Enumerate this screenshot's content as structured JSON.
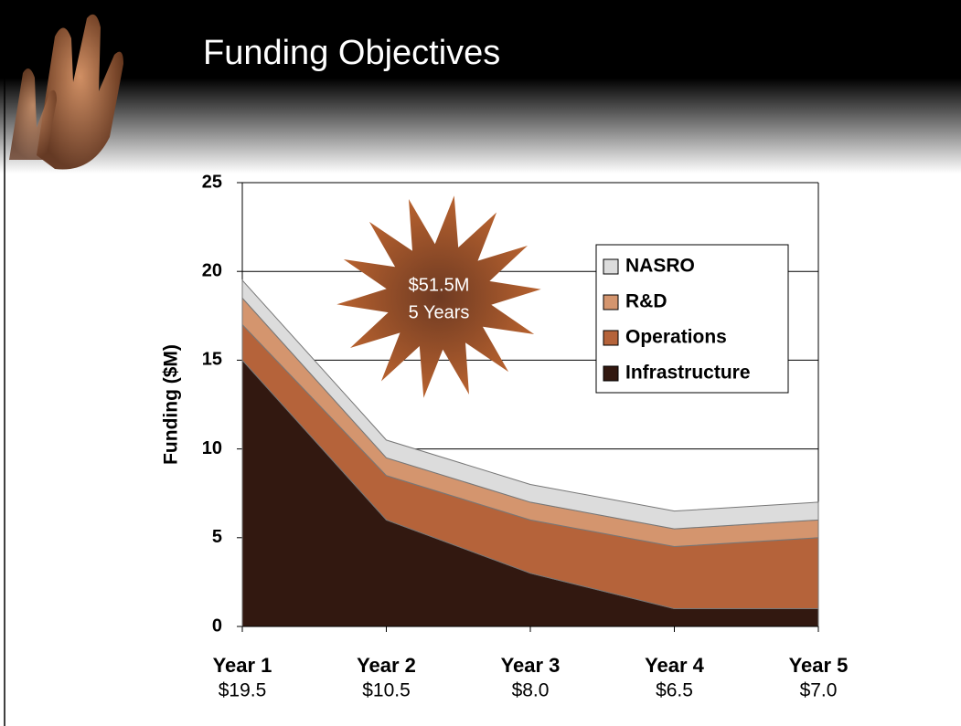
{
  "header": {
    "title": "Funding Objectives"
  },
  "chart_data": {
    "type": "stacked-area",
    "y_label": "Funding ($M)",
    "categories": [
      "Year 1",
      "Year 2",
      "Year 3",
      "Year 4",
      "Year 5"
    ],
    "totals": {
      "values": [
        19.5,
        10.5,
        8.0,
        6.5,
        7.0
      ],
      "value_labels": [
        "$19.5",
        "$10.5",
        "$8.0",
        "$6.5",
        "$7.0"
      ]
    },
    "series": [
      {
        "name": "Infrastructure",
        "color": "#321810",
        "values": [
          15,
          6,
          3,
          1,
          1
        ]
      },
      {
        "name": "Operations",
        "color": "#b5633a",
        "values": [
          2,
          2.5,
          3,
          3.5,
          4
        ]
      },
      {
        "name": "R&D",
        "color": "#d4956e",
        "values": [
          1.5,
          1,
          1,
          1,
          1
        ]
      },
      {
        "name": "NASRO",
        "color": "#dcdcdc",
        "values": [
          1,
          1,
          1,
          1,
          1
        ]
      }
    ],
    "ylim": [
      0,
      25
    ],
    "yticks": [
      0,
      5,
      10,
      15,
      20,
      25
    ],
    "grid": true,
    "legend": "upper-right",
    "annotations": [
      "$51.5M",
      "5 Years"
    ]
  }
}
